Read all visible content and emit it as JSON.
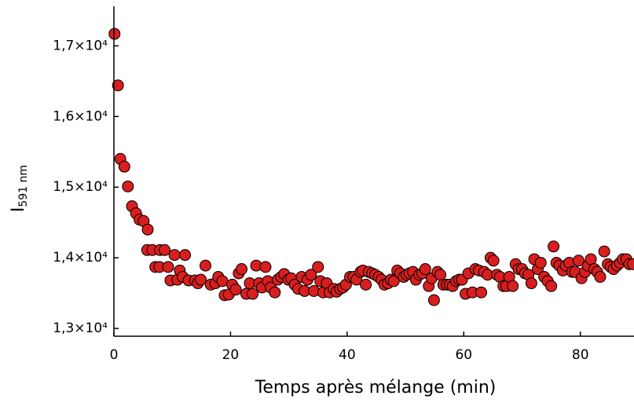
{
  "chart_data": {
    "type": "scatter",
    "x_label": "Temps après mélange (min)",
    "y_label": "I",
    "y_label_sub": "591 nm",
    "color": "#d81e1e",
    "xlim": [
      0,
      89.2
    ],
    "ylim": [
      12890,
      17560
    ],
    "xticks": [
      0,
      20,
      40,
      60,
      80
    ],
    "yticks": [
      {
        "value": 13000,
        "label": "1,3×10⁴"
      },
      {
        "value": 14000,
        "label": "1,4×10⁴"
      },
      {
        "value": 15000,
        "label": "1,5×10⁴"
      },
      {
        "value": 16000,
        "label": "1,6×10⁴"
      },
      {
        "value": 17000,
        "label": "1,7×10⁴"
      }
    ],
    "x": [
      0.1,
      0.7,
      1.1,
      1.8,
      2.4,
      3.1,
      3.8,
      4.4,
      5.1,
      5.8,
      5.7,
      6.6,
      7.9,
      8.7,
      7.1,
      7.8,
      9.3,
      9.7,
      10.9,
      10.4,
      11.3,
      12.2,
      11.8,
      12.8,
      13.9,
      14.4,
      14.9,
      15.7,
      16.6,
      17.4,
      17.9,
      18.6,
      19.0,
      19.7,
      20.3,
      20.9,
      21.4,
      21.9,
      22.7,
      23.3,
      23.8,
      24.4,
      24.9,
      25.4,
      26.0,
      26.4,
      26.9,
      27.6,
      28.1,
      28.7,
      29.2,
      29.9,
      30.4,
      31.0,
      31.6,
      32.2,
      32.7,
      33.2,
      33.8,
      34.3,
      35.0,
      35.4,
      35.9,
      36.5,
      37.0,
      37.7,
      38.2,
      38.8,
      39.3,
      39.8,
      40.5,
      41.1,
      41.6,
      42.3,
      42.7,
      43.2,
      43.7,
      44.3,
      44.8,
      45.4,
      45.9,
      46.4,
      47.0,
      47.5,
      48.0,
      48.6,
      49.1,
      49.7,
      50.2,
      50.7,
      51.3,
      51.8,
      52.4,
      52.9,
      53.4,
      54.0,
      54.5,
      54.9,
      55.5,
      56.0,
      56.5,
      57.1,
      57.6,
      58.1,
      58.7,
      59.2,
      59.7,
      60.3,
      60.8,
      61.5,
      62.0,
      62.6,
      63.0,
      63.5,
      64.1,
      64.6,
      65.1,
      65.7,
      66.2,
      66.8,
      67.3,
      67.8,
      68.4,
      68.9,
      69.4,
      70.0,
      70.5,
      71.1,
      71.6,
      72.1,
      72.7,
      73.2,
      73.8,
      74.4,
      75.0,
      75.4,
      75.9,
      76.4,
      77.0,
      77.5,
      78.1,
      78.6,
      79.1,
      79.7,
      80.2,
      80.8,
      81.3,
      81.8,
      82.4,
      82.9,
      83.4,
      84.1,
      84.7,
      85.2,
      85.7,
      86.3,
      86.8,
      87.3,
      87.9,
      88.4,
      89.0
    ],
    "values": [
      17170,
      16440,
      15400,
      15290,
      15010,
      14730,
      14630,
      14540,
      14520,
      14400,
      14110,
      14110,
      14110,
      14110,
      13870,
      13870,
      13870,
      13680,
      13690,
      14040,
      13820,
      14040,
      13730,
      13680,
      13680,
      13640,
      13690,
      13890,
      13620,
      13640,
      13730,
      13670,
      13470,
      13480,
      13620,
      13550,
      13780,
      13840,
      13490,
      13640,
      13490,
      13890,
      13640,
      13580,
      13870,
      13670,
      13580,
      13510,
      13690,
      13730,
      13770,
      13690,
      13710,
      13620,
      13560,
      13730,
      13530,
      13690,
      13760,
      13530,
      13870,
      13670,
      13510,
      13640,
      13510,
      13560,
      13520,
      13560,
      13580,
      13620,
      13730,
      13730,
      13690,
      13800,
      13820,
      13620,
      13800,
      13780,
      13760,
      13730,
      13690,
      13620,
      13640,
      13690,
      13670,
      13820,
      13780,
      13730,
      13760,
      13780,
      13800,
      13690,
      13760,
      13780,
      13840,
      13600,
      13710,
      13400,
      13800,
      13760,
      13620,
      13620,
      13620,
      13600,
      13670,
      13690,
      13690,
      13490,
      13780,
      13510,
      13840,
      13820,
      13510,
      13800,
      13760,
      14000,
      13960,
      13760,
      13730,
      13600,
      13600,
      13730,
      13600,
      13910,
      13840,
      13840,
      13780,
      13760,
      13640,
      13980,
      13840,
      13930,
      13730,
      13670,
      13600,
      14160,
      13930,
      13890,
      13820,
      13890,
      13930,
      13800,
      13800,
      13960,
      13710,
      13800,
      13890,
      13980,
      13840,
      13800,
      13730,
      14090,
      13910,
      13870,
      13840,
      13890,
      13930,
      13980,
      13980,
      13910,
      13910
    ]
  }
}
